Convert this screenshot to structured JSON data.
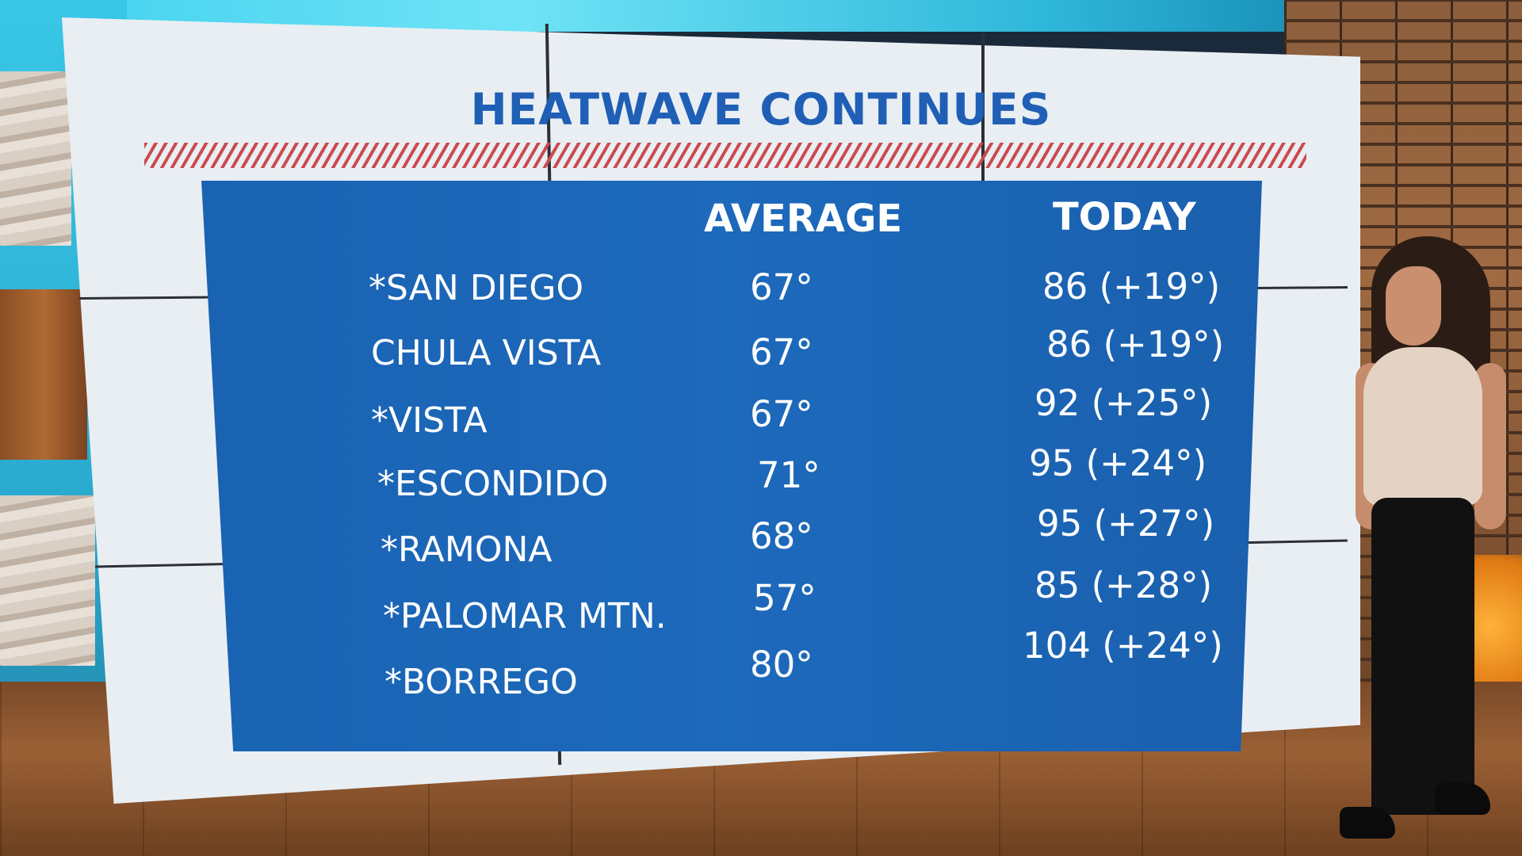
{
  "graphic": {
    "title": "HEATWAVE CONTINUES",
    "columns": {
      "average": "AVERAGE",
      "today": "TODAY"
    },
    "rows": [
      {
        "city": "*SAN DIEGO",
        "average": "67°",
        "today": "86 (+19°)"
      },
      {
        "city": "CHULA VISTA",
        "average": "67°",
        "today": "86 (+19°)"
      },
      {
        "city": "*VISTA",
        "average": "67°",
        "today": "92 (+25°)"
      },
      {
        "city": "*ESCONDIDO",
        "average": "71°",
        "today": "95 (+24°)"
      },
      {
        "city": "*RAMONA",
        "average": "68°",
        "today": "95 (+27°)"
      },
      {
        "city": "*PALOMAR MTN.",
        "average": "57°",
        "today": "85 (+28°)"
      },
      {
        "city": "*BORREGO",
        "average": "80°",
        "today": "104 (+24°)"
      }
    ]
  },
  "colors": {
    "title": "#1f5fb5",
    "board": "#1d69bb",
    "hatch": "#cc4a4f",
    "text": "#ffffff"
  }
}
